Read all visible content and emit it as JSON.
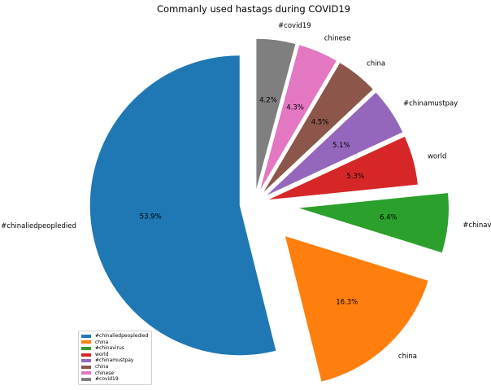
{
  "chart_data": {
    "type": "pie",
    "title": "Commanly used hastags during COVID19",
    "labels": [
      "#chinaliedpeopledied",
      "china",
      "#chinavirus",
      "world",
      "#chinamustpay",
      "china",
      "chinese",
      "#covid19"
    ],
    "values": [
      53.9,
      16.3,
      6.4,
      5.3,
      5.1,
      4.5,
      4.3,
      4.2
    ],
    "pct_labels": [
      "53.9%",
      "16.3%",
      "6.4%",
      "5.3%",
      "5.1%",
      "4.5%",
      "4.3%",
      "4.2%"
    ],
    "colors": [
      "#1f77b4",
      "#ff7f0e",
      "#2ca02c",
      "#d62728",
      "#9467bd",
      "#8c564b",
      "#e377c2",
      "#7f7f7f"
    ],
    "explode": [
      0,
      0.2,
      0.2,
      0,
      0,
      0,
      0,
      0
    ],
    "start_angle": 90,
    "direction": "counterclockwise",
    "legend": {
      "location": "lower-left",
      "entries": [
        "#chinaliedpeopledied",
        "china",
        "#chinavirus",
        "world",
        "#chinamustpay",
        "china",
        "chinese",
        "#covid19"
      ]
    }
  }
}
